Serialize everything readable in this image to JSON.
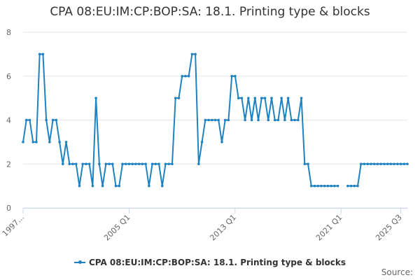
{
  "chart_data": {
    "type": "line",
    "title": "CPA 08:EU:IM:CP:BOP:SA: 18.1. Printing type & blocks",
    "source_label": "Source:",
    "x_tick_labels": [
      "1997...",
      "2005 Q1",
      "2013 Q1",
      "2021 Q1",
      "2025 Q3"
    ],
    "ylim": [
      0,
      8
    ],
    "y_ticks": [
      0,
      2,
      4,
      6,
      8
    ],
    "grid": true,
    "legend_position": "bottom",
    "colors": {
      "series": "#1f82c0",
      "grid": "#e6e6e6",
      "axis": "#ccd6eb",
      "tick_text": "#666666"
    },
    "series": [
      {
        "name": "CPA 08:EU:IM:CP:BOP:SA: 18.1. Printing type & blocks",
        "start": "1997 Q1",
        "values": [
          3,
          4,
          4,
          3,
          3,
          7,
          7,
          4,
          3,
          4,
          4,
          3,
          2,
          3,
          2,
          2,
          2,
          1,
          2,
          2,
          2,
          1,
          5,
          2,
          1,
          2,
          2,
          2,
          1,
          1,
          2,
          2,
          2,
          2,
          2,
          2,
          2,
          2,
          1,
          2,
          2,
          2,
          1,
          2,
          2,
          2,
          5,
          5,
          6,
          6,
          6,
          7,
          7,
          2,
          3,
          4,
          4,
          4,
          4,
          4,
          3,
          4,
          4,
          6,
          6,
          5,
          5,
          4,
          5,
          4,
          5,
          4,
          5,
          5,
          4,
          5,
          4,
          4,
          5,
          4,
          5,
          4,
          4,
          4,
          5,
          2,
          2,
          1,
          1,
          1,
          1,
          1,
          1,
          1,
          1,
          1,
          null,
          null,
          1,
          1,
          1,
          1,
          2,
          2,
          2,
          2,
          2,
          2,
          2,
          2,
          2,
          2,
          2,
          2,
          2,
          2,
          2
        ]
      }
    ]
  }
}
